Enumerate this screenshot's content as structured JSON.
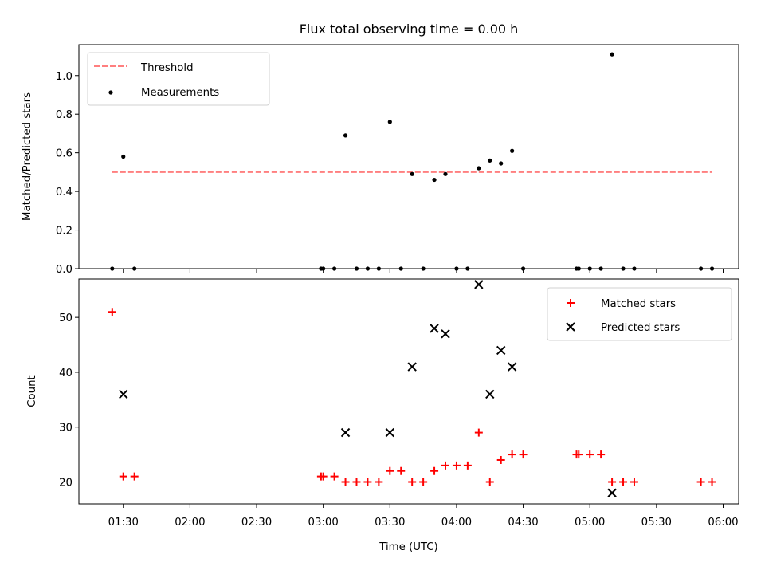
{
  "figure": {
    "title": "Flux total observing time = 0.00 h",
    "xlabel": "Time (UTC)"
  },
  "chart_data": [
    {
      "type": "scatter",
      "title": "Flux total observing time = 0.00 h",
      "xlabel": "",
      "ylabel": "Matched/Predicted stars",
      "xlim": [
        "01:10",
        "06:07"
      ],
      "ylim": [
        0,
        1.16
      ],
      "yticks": [
        0.0,
        0.2,
        0.4,
        0.6,
        0.8,
        1.0
      ],
      "ytick_labels": [
        "0.0",
        "0.2",
        "0.4",
        "0.6",
        "0.8",
        "1.0"
      ],
      "legend_position": "upper left",
      "lines": [
        {
          "name": "Threshold",
          "color": "#ff7f7f",
          "style": "dashed",
          "x": [
            "01:25",
            "05:55"
          ],
          "y": [
            0.5,
            0.5
          ]
        }
      ],
      "series": [
        {
          "name": "Measurements",
          "color": "#000000",
          "marker": "dot",
          "points": [
            [
              "01:25",
              0.0
            ],
            [
              "01:30",
              0.58
            ],
            [
              "01:35",
              0.0
            ],
            [
              "02:59",
              0.0
            ],
            [
              "03:00",
              0.0
            ],
            [
              "03:05",
              0.0
            ],
            [
              "03:10",
              0.69
            ],
            [
              "03:15",
              0.0
            ],
            [
              "03:20",
              0.0
            ],
            [
              "03:25",
              0.0
            ],
            [
              "03:30",
              0.76
            ],
            [
              "03:35",
              0.0
            ],
            [
              "03:40",
              0.49
            ],
            [
              "03:45",
              0.0
            ],
            [
              "03:50",
              0.46
            ],
            [
              "03:55",
              0.49
            ],
            [
              "04:00",
              0.0
            ],
            [
              "04:05",
              0.0
            ],
            [
              "04:10",
              0.52
            ],
            [
              "04:15",
              0.56
            ],
            [
              "04:20",
              0.545
            ],
            [
              "04:25",
              0.61
            ],
            [
              "04:30",
              0.0
            ],
            [
              "04:54",
              0.0
            ],
            [
              "04:55",
              0.0
            ],
            [
              "05:00",
              0.0
            ],
            [
              "05:05",
              0.0
            ],
            [
              "05:10",
              1.11
            ],
            [
              "05:15",
              0.0
            ],
            [
              "05:20",
              0.0
            ],
            [
              "05:50",
              0.0
            ],
            [
              "05:55",
              0.0
            ]
          ]
        }
      ]
    },
    {
      "type": "scatter",
      "title": "",
      "xlabel": "Time (UTC)",
      "ylabel": "Count",
      "xlim": [
        "01:10",
        "06:07"
      ],
      "ylim": [
        16,
        57
      ],
      "yticks": [
        20,
        30,
        40,
        50
      ],
      "ytick_labels": [
        "20",
        "30",
        "40",
        "50"
      ],
      "xticks": [
        "01:30",
        "02:00",
        "02:30",
        "03:00",
        "03:30",
        "04:00",
        "04:30",
        "05:00",
        "05:30",
        "06:00"
      ],
      "legend_position": "upper right",
      "series": [
        {
          "name": "Matched stars",
          "color": "#ff0000",
          "marker": "plus",
          "points": [
            [
              "01:25",
              51
            ],
            [
              "01:30",
              21
            ],
            [
              "01:35",
              21
            ],
            [
              "02:59",
              21
            ],
            [
              "03:00",
              21
            ],
            [
              "03:05",
              21
            ],
            [
              "03:10",
              20
            ],
            [
              "03:15",
              20
            ],
            [
              "03:20",
              20
            ],
            [
              "03:25",
              20
            ],
            [
              "03:30",
              22
            ],
            [
              "03:35",
              22
            ],
            [
              "03:40",
              20
            ],
            [
              "03:45",
              20
            ],
            [
              "03:50",
              22
            ],
            [
              "03:55",
              23
            ],
            [
              "04:00",
              23
            ],
            [
              "04:05",
              23
            ],
            [
              "04:10",
              29
            ],
            [
              "04:15",
              20
            ],
            [
              "04:20",
              24
            ],
            [
              "04:25",
              25
            ],
            [
              "04:30",
              25
            ],
            [
              "04:54",
              25
            ],
            [
              "04:55",
              25
            ],
            [
              "05:00",
              25
            ],
            [
              "05:05",
              25
            ],
            [
              "05:10",
              20
            ],
            [
              "05:15",
              20
            ],
            [
              "05:20",
              20
            ],
            [
              "05:50",
              20
            ],
            [
              "05:55",
              20
            ]
          ]
        },
        {
          "name": "Predicted stars",
          "color": "#000000",
          "marker": "x",
          "points": [
            [
              "01:30",
              36
            ],
            [
              "03:10",
              29
            ],
            [
              "03:30",
              29
            ],
            [
              "03:40",
              41
            ],
            [
              "03:50",
              48
            ],
            [
              "03:55",
              47
            ],
            [
              "04:10",
              56
            ],
            [
              "04:15",
              36
            ],
            [
              "04:20",
              44
            ],
            [
              "04:25",
              41
            ],
            [
              "05:10",
              18
            ]
          ]
        }
      ]
    }
  ]
}
